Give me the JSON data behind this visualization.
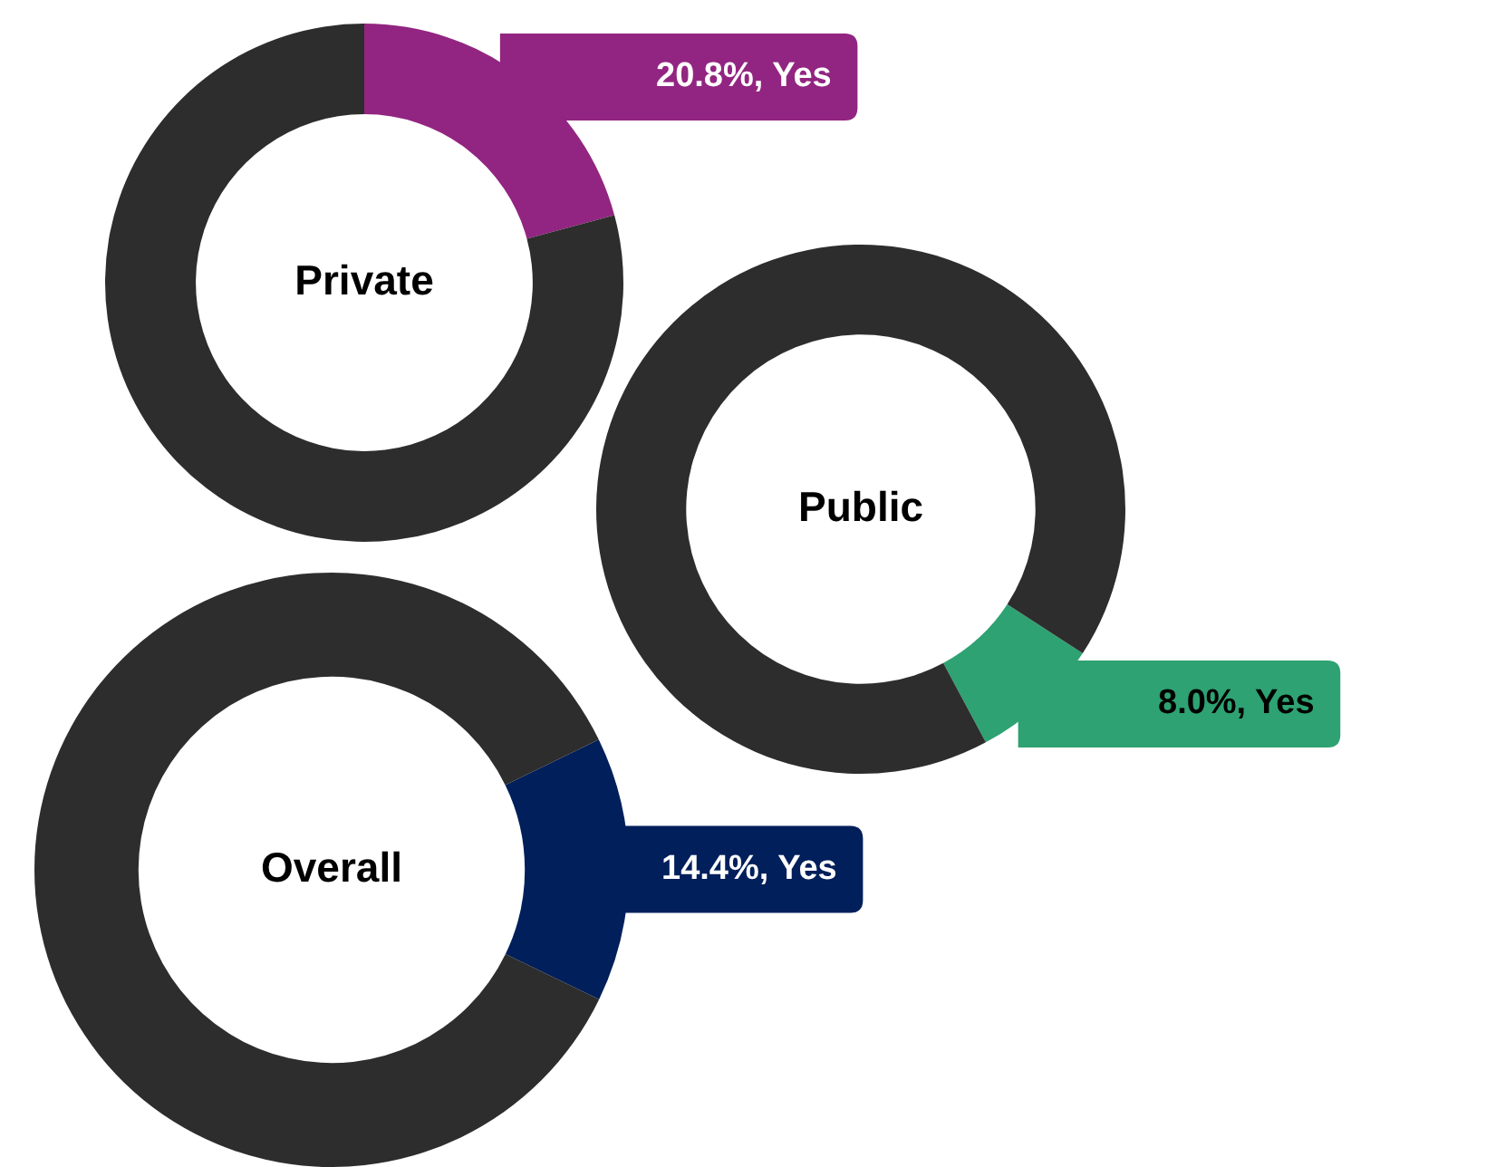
{
  "chart_data": [
    {
      "type": "donut",
      "title": "Private",
      "categories": [
        "Yes",
        null
      ],
      "values": [
        20.8,
        79.2
      ],
      "colors": [
        "#922581",
        "#2d2d2d"
      ],
      "value_labels": [
        "20.8%",
        null
      ]
    },
    {
      "type": "donut",
      "title": "Public",
      "categories": [
        "Yes",
        null
      ],
      "values": [
        8.0,
        92.0
      ],
      "colors": [
        "#2ea272",
        "#2d2d2d"
      ],
      "value_labels": [
        "8.0%",
        null
      ]
    },
    {
      "type": "donut",
      "title": "Overall",
      "categories": [
        "Yes",
        null
      ],
      "values": [
        14.4,
        85.6
      ],
      "colors": [
        "#001f5b",
        "#2d2d2d"
      ],
      "value_labels": [
        "14.4%",
        null
      ]
    }
  ]
}
